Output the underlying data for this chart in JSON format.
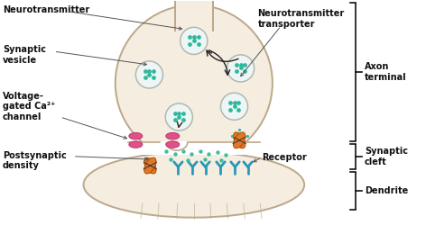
{
  "bg_color": "#ffffff",
  "axon_body_color": "#f5ede0",
  "axon_outline_color": "#bba88a",
  "vesicle_fill": "#eef5f5",
  "vesicle_outline": "#b0b8b0",
  "dot_color": "#2db89a",
  "ca_channel_color": "#e0508a",
  "transporter_color": "#e07828",
  "receptor_color": "#2898b8",
  "dendrite_color": "#f5ede0",
  "dendrite_outline": "#bba88a",
  "text_color": "#111111",
  "bracket_color": "#111111",
  "arrow_color": "#222222",
  "labels": {
    "neurotransmitter": "Neurotransmitter",
    "synaptic_vesicle": "Synaptic\nvesicle",
    "voltage_gated": "Voltage-\ngated Ca²⁺\nchannel",
    "postsynaptic": "Postsynaptic\ndensity",
    "neurotrans_transporter": "Neurotransmitter\ntransporter",
    "receptor": "Receptor",
    "axon_terminal": "Axon\nterminal",
    "synaptic_cleft": "Synaptic\ncleft",
    "dendrite": "Dendrite"
  }
}
